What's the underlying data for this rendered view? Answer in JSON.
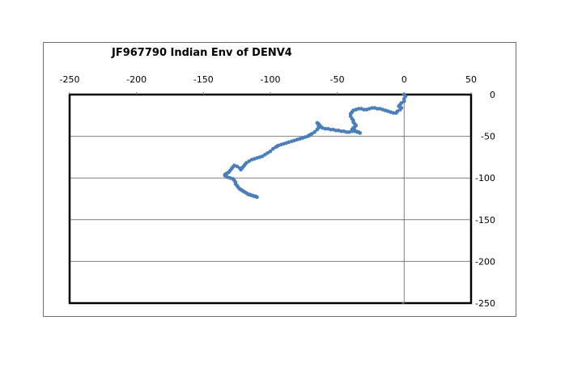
{
  "chart_data": {
    "type": "line",
    "title": "JF967790 Indian Env of DENV4",
    "xlabel": "",
    "ylabel": "",
    "xlim": [
      -250,
      50
    ],
    "ylim": [
      -250,
      0
    ],
    "x_ticks": [
      -250,
      -200,
      -150,
      -100,
      -50,
      0,
      50
    ],
    "y_ticks": [
      0,
      -50,
      -100,
      -150,
      -200,
      -250
    ],
    "grid": "horizontal",
    "legend": "none",
    "line_color": "#4a7ebb",
    "series": [
      {
        "x": [
          0,
          1,
          0,
          0,
          -2,
          -3,
          -4,
          -2,
          -3,
          -5,
          -6,
          -8,
          -10,
          -12,
          -14,
          -16,
          -18,
          -20,
          -22,
          -24,
          -26,
          -28,
          -30,
          -32,
          -34,
          -36,
          -38,
          -39,
          -40,
          -40,
          -39,
          -38,
          -38,
          -37,
          -36,
          -37,
          -38,
          -39,
          -37,
          -36,
          -34,
          -33,
          -35,
          -37,
          -39,
          -41,
          -43,
          -45,
          -47,
          -49,
          -51,
          -53,
          -55,
          -57,
          -59,
          -61,
          -62,
          -63,
          -64,
          -65,
          -64,
          -64,
          -65,
          -67,
          -69,
          -70,
          -71,
          -72,
          -74,
          -76,
          -78,
          -80,
          -82,
          -84,
          -86,
          -88,
          -90,
          -92,
          -94,
          -95,
          -96,
          -98,
          -100,
          -102,
          -104,
          -106,
          -108,
          -110,
          -112,
          -114,
          -116,
          -118,
          -119,
          -120,
          -121,
          -122,
          -123,
          -125,
          -127,
          -128,
          -129,
          -130,
          -131,
          -132,
          -133,
          -134,
          -134,
          -133,
          -132,
          -130,
          -128,
          -127,
          -126,
          -126,
          -125,
          -124,
          -123,
          -122,
          -121,
          -120,
          -119,
          -118,
          -117,
          -116,
          -115,
          -114,
          -113,
          -112,
          -111,
          -110
        ],
        "y": [
          0,
          -2,
          -5,
          -8,
          -10,
          -12,
          -14,
          -16,
          -18,
          -20,
          -22,
          -22,
          -21,
          -20,
          -19,
          -18,
          -17,
          -17,
          -16,
          -16,
          -17,
          -18,
          -18,
          -17,
          -17,
          -18,
          -19,
          -21,
          -23,
          -26,
          -29,
          -31,
          -33,
          -35,
          -37,
          -39,
          -40,
          -42,
          -43,
          -44,
          -45,
          -46,
          -45,
          -44,
          -44,
          -45,
          -45,
          -44,
          -44,
          -43,
          -43,
          -42,
          -42,
          -41,
          -41,
          -40,
          -39,
          -37,
          -35,
          -34,
          -37,
          -40,
          -42,
          -45,
          -47,
          -48,
          -49,
          -50,
          -51,
          -52,
          -53,
          -54,
          -55,
          -56,
          -57,
          -58,
          -59,
          -60,
          -61,
          -62,
          -63,
          -65,
          -68,
          -70,
          -72,
          -74,
          -75,
          -76,
          -77,
          -78,
          -80,
          -82,
          -84,
          -86,
          -88,
          -90,
          -88,
          -86,
          -85,
          -87,
          -89,
          -91,
          -93,
          -94,
          -95,
          -96,
          -97,
          -98,
          -99,
          -100,
          -101,
          -103,
          -105,
          -107,
          -109,
          -111,
          -113,
          -114,
          -115,
          -116,
          -117,
          -118,
          -119,
          -120,
          -120,
          -121,
          -121,
          -122,
          -122,
          -123
        ]
      }
    ]
  }
}
